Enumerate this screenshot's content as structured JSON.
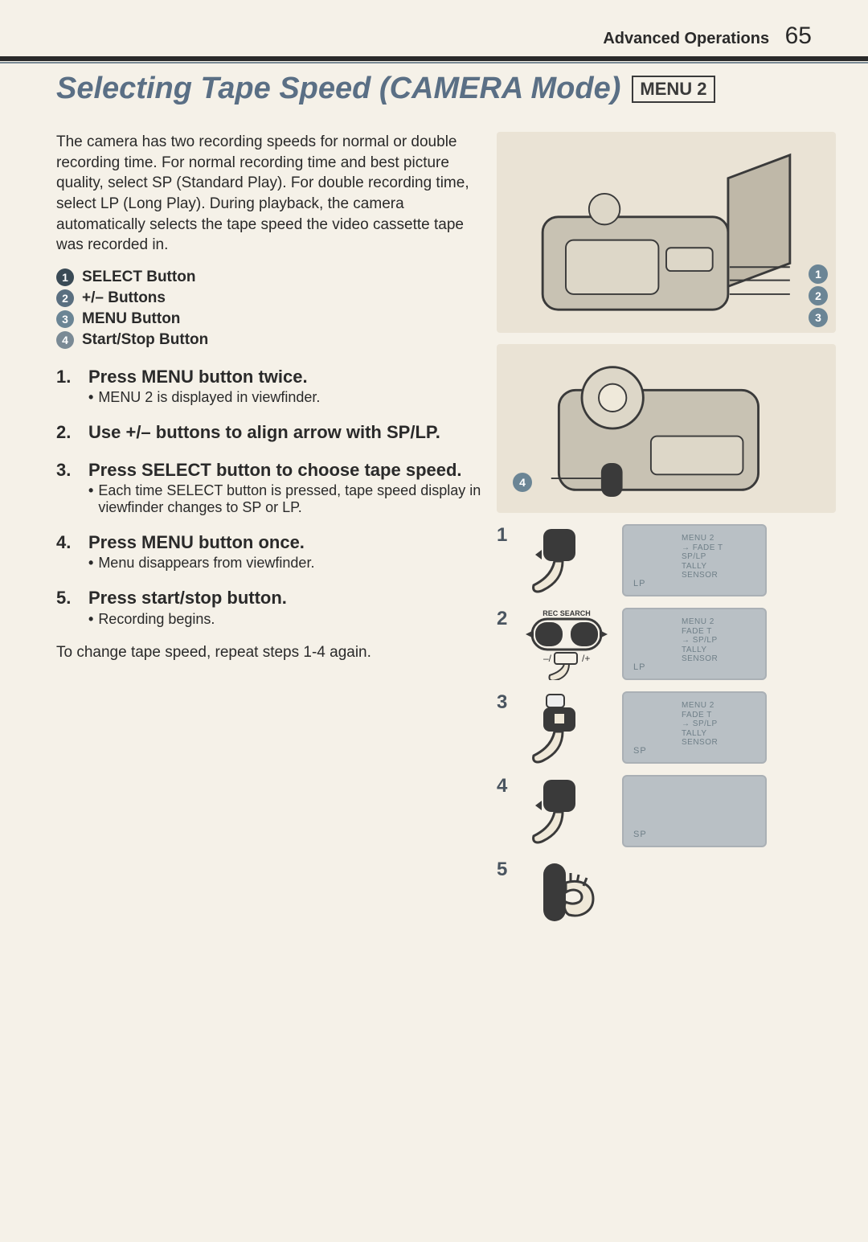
{
  "header": {
    "section": "Advanced Operations",
    "page": "65"
  },
  "title": "Selecting Tape Speed (CAMERA Mode)",
  "menu_badge": "MENU 2",
  "intro": "The camera has two recording speeds for normal or double recording time. For normal recording time and best picture quality, select SP (Standard Play). For double recording time, select LP (Long Play). During playback, the camera automatically selects the tape speed the video cassette tape was recorded in.",
  "callouts": [
    {
      "n": "1",
      "label": "SELECT Button"
    },
    {
      "n": "2",
      "label": "+/– Buttons"
    },
    {
      "n": "3",
      "label": "MENU Button"
    },
    {
      "n": "4",
      "label": "Start/Stop Button"
    }
  ],
  "steps": [
    {
      "n": "1.",
      "title": "Press MENU button twice.",
      "sub": "MENU 2 is displayed in viewfinder."
    },
    {
      "n": "2.",
      "title": "Use +/– buttons to align arrow with SP/LP.",
      "sub": ""
    },
    {
      "n": "3.",
      "title": "Press SELECT button to choose tape speed.",
      "sub": "Each time SELECT button is pressed, tape speed display in viewfinder changes to SP or LP."
    },
    {
      "n": "4.",
      "title": "Press MENU button once.",
      "sub": "Menu disappears from viewfinder."
    },
    {
      "n": "5.",
      "title": "Press start/stop button.",
      "sub": "Recording begins."
    }
  ],
  "footnote": "To change tape speed, repeat steps 1-4 again.",
  "viewfinders": [
    {
      "n": "1",
      "menu_title": "MENU 2",
      "lines": [
        "→ FADE T",
        "  SP/LP",
        "  TALLY",
        "  SENSOR"
      ],
      "bottom": "LP",
      "btn_kind": "menu"
    },
    {
      "n": "2",
      "menu_title": "MENU 2",
      "lines": [
        "  FADE T",
        "→ SP/LP",
        "  TALLY",
        "  SENSOR"
      ],
      "bottom": "LP",
      "btn_kind": "plusminus",
      "btn_label": "REC SEARCH"
    },
    {
      "n": "3",
      "menu_title": "MENU 2",
      "lines": [
        "  FADE T",
        "→ SP/LP",
        "  TALLY",
        "  SENSOR"
      ],
      "bottom": "SP",
      "btn_kind": "select"
    },
    {
      "n": "4",
      "menu_title": "",
      "lines": [],
      "bottom": "SP",
      "btn_kind": "menu"
    },
    {
      "n": "5",
      "menu_title": "",
      "lines": [],
      "bottom": "",
      "btn_kind": "startstop"
    }
  ],
  "colors": {
    "bg": "#f5f1e8",
    "title_color": "#5a6f85",
    "text": "#2a2a2a",
    "vf_bg": "#b9c0c5",
    "vf_text": "#6f7f88",
    "circ_colors": [
      "#3a4a55",
      "#5a6f80",
      "#6b8595",
      "#7a8a95"
    ]
  }
}
